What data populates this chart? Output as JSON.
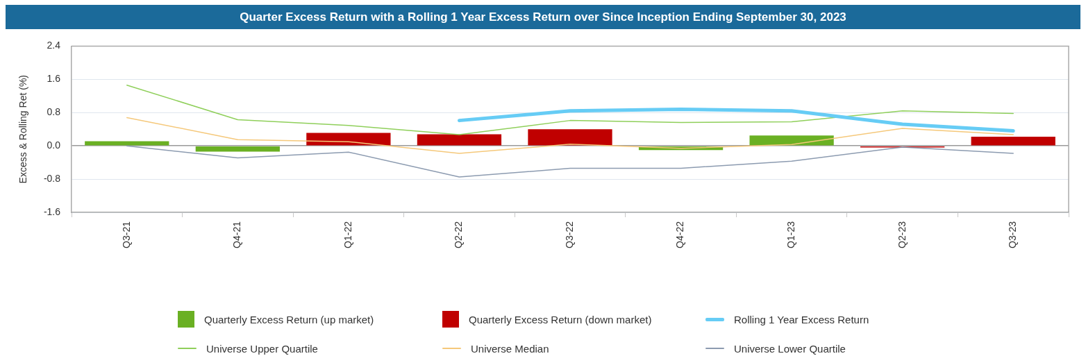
{
  "chart_data": {
    "type": "bar",
    "title": "Quarter Excess Return with a Rolling 1 Year Excess Return over Since Inception Ending September 30, 2023",
    "ylabel": "Excess & Rolling Ret (%)",
    "categories": [
      "Q3-21",
      "Q4-21",
      "Q1-22",
      "Q2-22",
      "Q3-22",
      "Q4-22",
      "Q1-23",
      "Q2-23",
      "Q3-23"
    ],
    "series": [
      {
        "name": "Quarterly Excess Return (up market)",
        "type": "bar",
        "color": "#6ab023",
        "values": [
          0.11,
          -0.14,
          null,
          null,
          null,
          -0.1,
          0.25,
          null,
          null
        ]
      },
      {
        "name": "Quarterly Excess Return (down market)",
        "type": "bar",
        "color": "#c00000",
        "values": [
          null,
          null,
          0.31,
          0.28,
          0.4,
          null,
          null,
          -0.04,
          0.22
        ]
      },
      {
        "name": "Rolling 1 Year Excess Return",
        "type": "line",
        "color": "#66ccf5",
        "values": [
          null,
          null,
          null,
          0.61,
          0.84,
          0.88,
          0.84,
          0.52,
          0.36
        ]
      },
      {
        "name": "Universe Upper Quartile",
        "type": "line",
        "color": "#8fcf5a",
        "values": [
          1.46,
          0.63,
          0.49,
          0.27,
          0.61,
          0.56,
          0.58,
          0.84,
          0.78
        ]
      },
      {
        "name": "Universe Median",
        "type": "line",
        "color": "#f5c87a",
        "values": [
          0.68,
          0.15,
          0.1,
          -0.18,
          0.04,
          -0.06,
          0.03,
          0.42,
          0.27
        ]
      },
      {
        "name": "Universe Lower Quartile",
        "type": "line",
        "color": "#8c9bb0",
        "values": [
          0.0,
          -0.29,
          -0.15,
          -0.75,
          -0.54,
          -0.54,
          -0.37,
          -0.03,
          -0.18
        ]
      }
    ],
    "ylim": [
      -1.6,
      2.4
    ],
    "yticks": [
      -1.6,
      -0.8,
      {
        "value": 0,
        "label": "0.0"
      },
      0.8,
      1.6,
      2.4
    ],
    "grid": "y",
    "legend": "bottom"
  }
}
